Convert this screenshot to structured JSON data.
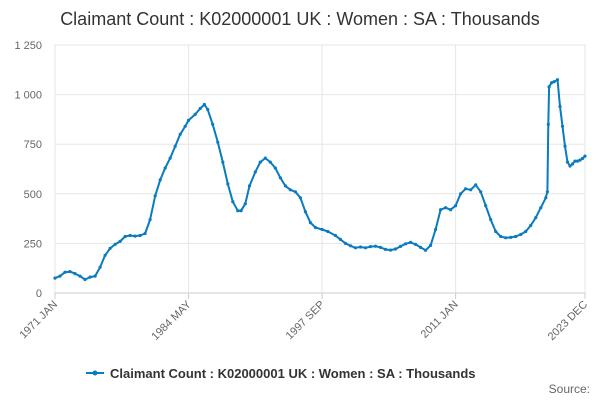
{
  "chart_data": {
    "type": "line",
    "title": "Claimant Count : K02000001 UK : Women : SA : Thousands",
    "xlabel": "",
    "ylabel": "",
    "ylim": [
      0,
      1250
    ],
    "y_ticks": [
      0,
      250,
      500,
      750,
      1000,
      1250
    ],
    "y_tick_labels": [
      "0",
      "250",
      "500",
      "750",
      "1 000",
      "1 250"
    ],
    "xlim": [
      "1971-01",
      "2023-12"
    ],
    "x_tick_labels": [
      {
        "date": "1971-01",
        "label": "1971 JAN"
      },
      {
        "date": "1984-05",
        "label": "1984 MAY"
      },
      {
        "date": "1997-09",
        "label": "1997 SEP"
      },
      {
        "date": "2011-01",
        "label": "2011 JAN"
      },
      {
        "date": "2023-12",
        "label": "2023 DEC"
      }
    ],
    "grid": true,
    "legend_position": "bottom",
    "series": [
      {
        "name": "Claimant Count : K02000001 UK : Women : SA : Thousands",
        "color": "#0a7bbf",
        "points": [
          [
            "1971-01",
            75
          ],
          [
            "1971-07",
            85
          ],
          [
            "1972-01",
            105
          ],
          [
            "1972-07",
            108
          ],
          [
            "1973-01",
            98
          ],
          [
            "1973-07",
            85
          ],
          [
            "1974-01",
            68
          ],
          [
            "1974-07",
            80
          ],
          [
            "1975-01",
            85
          ],
          [
            "1975-07",
            130
          ],
          [
            "1976-01",
            190
          ],
          [
            "1976-07",
            225
          ],
          [
            "1977-01",
            245
          ],
          [
            "1977-07",
            260
          ],
          [
            "1978-01",
            285
          ],
          [
            "1978-07",
            290
          ],
          [
            "1979-01",
            287
          ],
          [
            "1979-07",
            290
          ],
          [
            "1980-01",
            300
          ],
          [
            "1980-07",
            370
          ],
          [
            "1981-01",
            490
          ],
          [
            "1981-07",
            570
          ],
          [
            "1982-01",
            630
          ],
          [
            "1982-07",
            680
          ],
          [
            "1983-01",
            740
          ],
          [
            "1983-07",
            800
          ],
          [
            "1984-01",
            840
          ],
          [
            "1984-05",
            870
          ],
          [
            "1985-01",
            900
          ],
          [
            "1985-07",
            930
          ],
          [
            "1985-12",
            950
          ],
          [
            "1986-04",
            925
          ],
          [
            "1986-10",
            850
          ],
          [
            "1987-04",
            760
          ],
          [
            "1987-10",
            660
          ],
          [
            "1988-04",
            550
          ],
          [
            "1988-10",
            460
          ],
          [
            "1989-04",
            415
          ],
          [
            "1989-08",
            415
          ],
          [
            "1990-01",
            450
          ],
          [
            "1990-06",
            540
          ],
          [
            "1991-01",
            610
          ],
          [
            "1991-07",
            660
          ],
          [
            "1992-01",
            680
          ],
          [
            "1992-07",
            660
          ],
          [
            "1993-01",
            630
          ],
          [
            "1993-07",
            580
          ],
          [
            "1994-01",
            540
          ],
          [
            "1994-07",
            520
          ],
          [
            "1995-01",
            510
          ],
          [
            "1995-07",
            480
          ],
          [
            "1996-01",
            410
          ],
          [
            "1996-07",
            355
          ],
          [
            "1997-01",
            330
          ],
          [
            "1997-09",
            320
          ],
          [
            "1998-04",
            310
          ],
          [
            "1999-01",
            290
          ],
          [
            "1999-07",
            270
          ],
          [
            "2000-01",
            250
          ],
          [
            "2000-07",
            238
          ],
          [
            "2001-01",
            228
          ],
          [
            "2001-07",
            232
          ],
          [
            "2002-01",
            228
          ],
          [
            "2002-07",
            234
          ],
          [
            "2003-01",
            236
          ],
          [
            "2003-07",
            230
          ],
          [
            "2004-01",
            220
          ],
          [
            "2004-07",
            216
          ],
          [
            "2005-01",
            222
          ],
          [
            "2005-07",
            235
          ],
          [
            "2006-01",
            248
          ],
          [
            "2006-07",
            255
          ],
          [
            "2007-01",
            245
          ],
          [
            "2007-07",
            230
          ],
          [
            "2008-01",
            215
          ],
          [
            "2008-07",
            240
          ],
          [
            "2009-01",
            320
          ],
          [
            "2009-07",
            420
          ],
          [
            "2010-01",
            430
          ],
          [
            "2010-07",
            420
          ],
          [
            "2011-01",
            440
          ],
          [
            "2011-07",
            500
          ],
          [
            "2012-01",
            525
          ],
          [
            "2012-07",
            520
          ],
          [
            "2013-01",
            545
          ],
          [
            "2013-07",
            510
          ],
          [
            "2014-01",
            440
          ],
          [
            "2014-07",
            370
          ],
          [
            "2015-01",
            310
          ],
          [
            "2015-07",
            285
          ],
          [
            "2016-01",
            278
          ],
          [
            "2016-07",
            280
          ],
          [
            "2017-01",
            285
          ],
          [
            "2017-07",
            295
          ],
          [
            "2018-01",
            310
          ],
          [
            "2018-07",
            340
          ],
          [
            "2019-01",
            380
          ],
          [
            "2019-07",
            430
          ],
          [
            "2020-01",
            480
          ],
          [
            "2020-03",
            510
          ],
          [
            "2020-04",
            850
          ],
          [
            "2020-05",
            1040
          ],
          [
            "2020-08",
            1060
          ],
          [
            "2020-11",
            1065
          ],
          [
            "2021-03",
            1075
          ],
          [
            "2021-06",
            940
          ],
          [
            "2021-09",
            840
          ],
          [
            "2021-12",
            740
          ],
          [
            "2022-03",
            660
          ],
          [
            "2022-06",
            640
          ],
          [
            "2022-09",
            650
          ],
          [
            "2022-12",
            665
          ],
          [
            "2023-03",
            665
          ],
          [
            "2023-06",
            670
          ],
          [
            "2023-09",
            678
          ],
          [
            "2023-12",
            690
          ]
        ]
      }
    ],
    "source_label": "Source:"
  }
}
